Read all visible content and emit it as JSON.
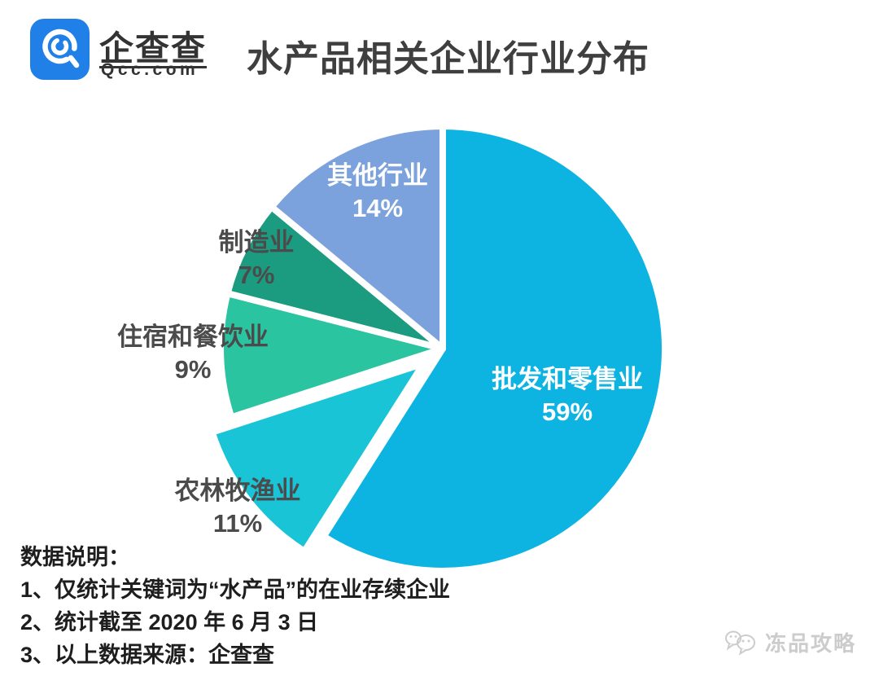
{
  "header": {
    "brand_name": "企查查",
    "brand_domain": "Qcc.com",
    "title": "水产品相关企业行业分布",
    "brand_color": "#2080e8"
  },
  "chart_data": {
    "type": "pie",
    "title": "水产品相关企业行业分布",
    "unit": "%",
    "start_angle_deg": 0,
    "direction": "clockwise",
    "slices": [
      {
        "id": "wholesale-retail",
        "label": "批发和零售业",
        "value": 59,
        "color": "#0db4e2",
        "label_style": "inside-white",
        "exploded": false
      },
      {
        "id": "agriculture-forestry",
        "label": "农林牧渔业",
        "value": 11,
        "color": "#18c4d6",
        "label_style": "outside-dark",
        "exploded": true
      },
      {
        "id": "accommodation-catering",
        "label": "住宿和餐饮业",
        "value": 9,
        "color": "#2bc4a0",
        "label_style": "outside-dark",
        "exploded": false
      },
      {
        "id": "manufacturing",
        "label": "制造业",
        "value": 7,
        "color": "#1b9c80",
        "label_style": "outside-dark",
        "exploded": false
      },
      {
        "id": "other-industries",
        "label": "其他行业",
        "value": 14,
        "color": "#7ba2dc",
        "label_style": "inside-white",
        "exploded": false
      }
    ]
  },
  "notes": {
    "heading": "数据说明：",
    "items": [
      "1、仅统计关键词为“水产品”的在业存续企业",
      "2、统计截至 2020 年 6 月 3 日",
      "3、以上数据来源：企查查"
    ]
  },
  "watermark": {
    "icon": "wechat-icon",
    "text": "冻品攻略"
  }
}
